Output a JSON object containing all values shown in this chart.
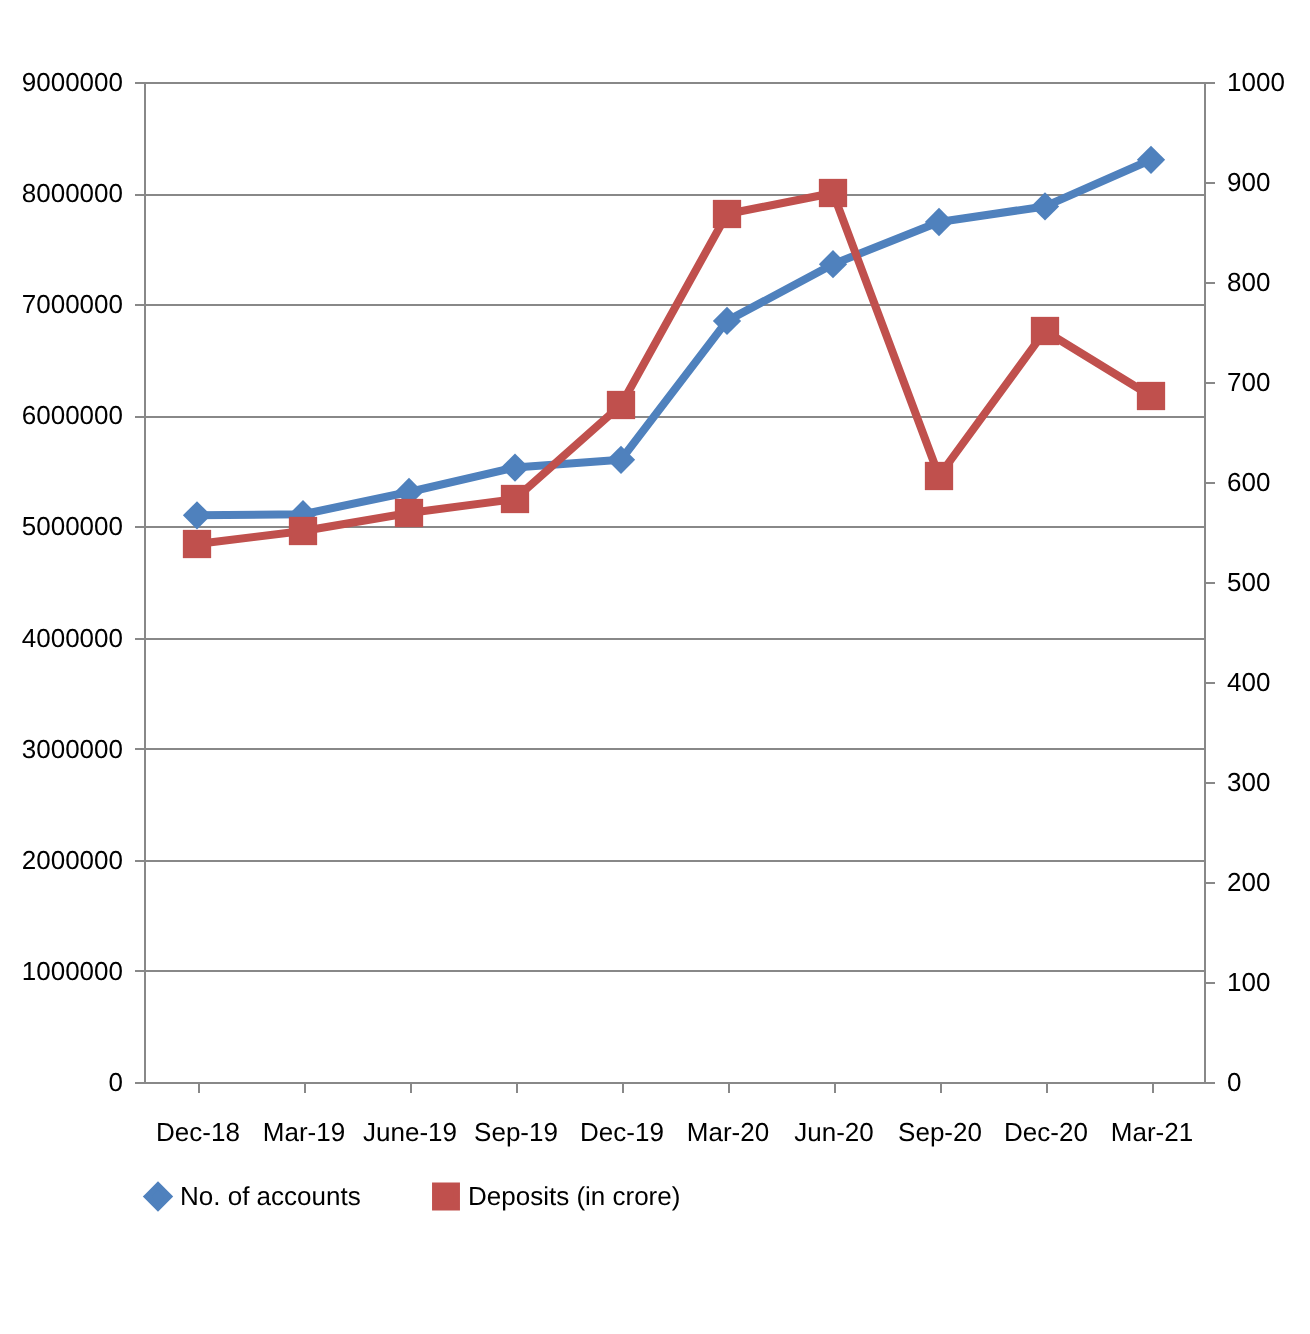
{
  "chart_data": {
    "type": "line",
    "categories": [
      "Dec-18",
      "Mar-19",
      "June-19",
      "Sep-19",
      "Dec-19",
      "Mar-20",
      "Jun-20",
      "Sep-20",
      "Dec-20",
      "Mar-21"
    ],
    "series": [
      {
        "name": "No. of accounts",
        "color": "#4f81bd",
        "marker": "diamond",
        "values": [
          5100000,
          5110000,
          5310000,
          5530000,
          5600000,
          6850000,
          7360000,
          7740000,
          7880000,
          8300000
        ]
      },
      {
        "name": "Deposits (in crore)",
        "color": "#c0504d",
        "marker": "square",
        "axis": "y2",
        "values": [
          538,
          551,
          569,
          583,
          677,
          868,
          889,
          606,
          751,
          686
        ]
      }
    ],
    "ylim": [
      0,
      9000000
    ],
    "yticks": [
      0,
      1000000,
      2000000,
      3000000,
      4000000,
      5000000,
      6000000,
      7000000,
      8000000,
      9000000
    ],
    "y2lim": [
      0,
      1000
    ],
    "y2ticks": [
      0,
      100,
      200,
      300,
      400,
      500,
      600,
      700,
      800,
      900,
      1000
    ],
    "grid": "y",
    "legend": "bottom"
  }
}
